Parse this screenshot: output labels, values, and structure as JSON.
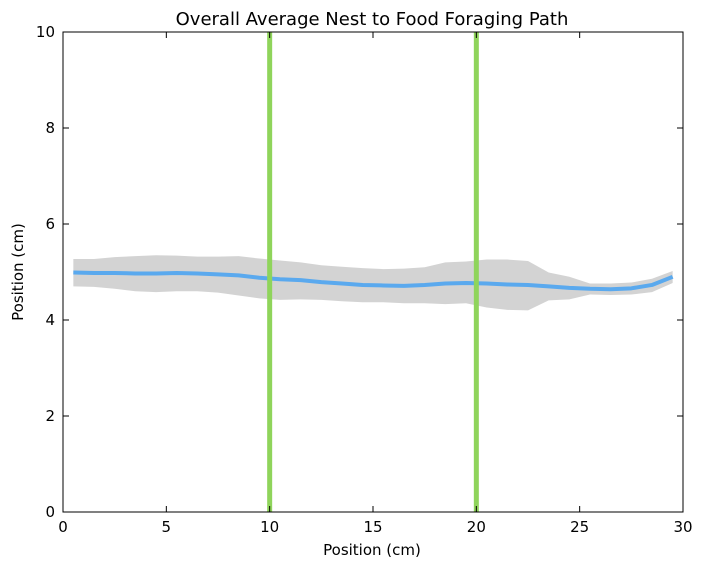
{
  "chart_data": {
    "type": "line",
    "title": "Overall Average Nest to Food Foraging Path",
    "xlabel": "Position (cm)",
    "ylabel": "Position (cm)",
    "xlim": [
      0,
      30
    ],
    "ylim": [
      0,
      10
    ],
    "xticks": [
      0,
      5,
      10,
      15,
      20,
      25,
      30
    ],
    "yticks": [
      0,
      2,
      4,
      6,
      8,
      10
    ],
    "xtick_labels": [
      "0",
      "5",
      "10",
      "15",
      "20",
      "25",
      "30"
    ],
    "ytick_labels": [
      "0",
      "2",
      "4",
      "6",
      "8",
      "10"
    ],
    "grid": false,
    "series": [
      {
        "role": "mean",
        "color": "#5aa9ee",
        "x": [
          0.5,
          1.5,
          2.5,
          3.5,
          4.5,
          5.5,
          6.5,
          7.5,
          8.5,
          9.5,
          10.5,
          11.5,
          12.5,
          13.5,
          14.5,
          15.5,
          16.5,
          17.5,
          18.5,
          19.5,
          20.5,
          21.5,
          22.5,
          23.5,
          24.5,
          25.5,
          26.5,
          27.5,
          28.5,
          29.5
        ],
        "y": [
          4.99,
          4.98,
          4.98,
          4.97,
          4.97,
          4.98,
          4.97,
          4.95,
          4.93,
          4.88,
          4.85,
          4.83,
          4.79,
          4.76,
          4.73,
          4.72,
          4.71,
          4.73,
          4.76,
          4.77,
          4.76,
          4.74,
          4.73,
          4.7,
          4.67,
          4.65,
          4.64,
          4.66,
          4.73,
          4.9
        ]
      },
      {
        "role": "band",
        "color": "#d3d3d3",
        "x": [
          0.5,
          1.5,
          2.5,
          3.5,
          4.5,
          5.5,
          6.5,
          7.5,
          8.5,
          9.5,
          10.5,
          11.5,
          12.5,
          13.5,
          14.5,
          15.5,
          16.5,
          17.5,
          18.5,
          19.5,
          20.5,
          21.5,
          22.5,
          23.5,
          24.5,
          25.5,
          26.5,
          27.5,
          28.5,
          29.5
        ],
        "upper": [
          5.27,
          5.27,
          5.31,
          5.33,
          5.35,
          5.34,
          5.32,
          5.32,
          5.33,
          5.28,
          5.24,
          5.2,
          5.14,
          5.11,
          5.08,
          5.06,
          5.07,
          5.1,
          5.2,
          5.22,
          5.26,
          5.26,
          5.23,
          4.99,
          4.9,
          4.76,
          4.76,
          4.78,
          4.86,
          5.02
        ],
        "lower": [
          4.7,
          4.69,
          4.65,
          4.6,
          4.58,
          4.6,
          4.6,
          4.57,
          4.51,
          4.45,
          4.42,
          4.43,
          4.42,
          4.39,
          4.37,
          4.37,
          4.35,
          4.35,
          4.33,
          4.35,
          4.26,
          4.21,
          4.2,
          4.41,
          4.43,
          4.53,
          4.52,
          4.53,
          4.58,
          4.77
        ]
      }
    ],
    "vlines": [
      {
        "x": 10,
        "color": "#8fd45b"
      },
      {
        "x": 20,
        "color": "#8fd45b"
      }
    ]
  }
}
